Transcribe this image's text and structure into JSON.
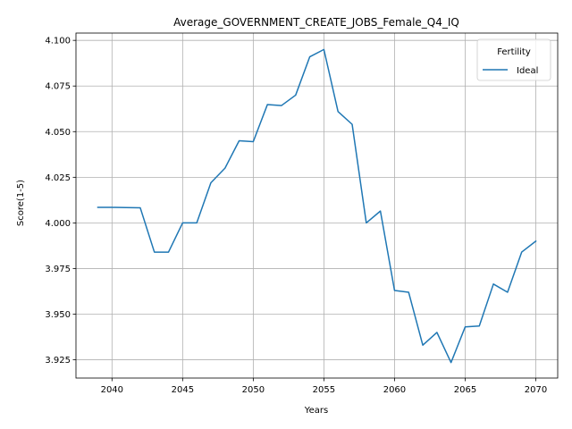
{
  "chart_data": {
    "type": "line",
    "title": "Average_GOVERNMENT_CREATE_JOBS_Female_Q4_IQ",
    "xlabel": "Years",
    "ylabel": "Score(1-5)",
    "xlim": [
      2037.45,
      2071.55
    ],
    "ylim": [
      3.915,
      4.104
    ],
    "xticks": [
      2040,
      2045,
      2050,
      2055,
      2060,
      2065,
      2070
    ],
    "xtick_labels": [
      "2040",
      "2045",
      "2050",
      "2055",
      "2060",
      "2065",
      "2070"
    ],
    "yticks": [
      3.925,
      3.95,
      3.975,
      4.0,
      4.025,
      4.05,
      4.075,
      4.1
    ],
    "ytick_labels": [
      "3.925",
      "3.950",
      "3.975",
      "4.000",
      "4.025",
      "4.050",
      "4.075",
      "4.100"
    ],
    "grid": true,
    "legend": {
      "title": "Fertility",
      "placement": "top-right",
      "entries": [
        "Ideal"
      ]
    },
    "series": [
      {
        "name": "Ideal",
        "color": "#1f77b4",
        "x": [
          2039,
          2040,
          2041,
          2042,
          2043,
          2044,
          2045,
          2046,
          2047,
          2048,
          2049,
          2050,
          2051,
          2052,
          2053,
          2054,
          2055,
          2056,
          2057,
          2058,
          2059,
          2060,
          2061,
          2062,
          2063,
          2064,
          2065,
          2066,
          2067,
          2068,
          2069,
          2070
        ],
        "y": [
          4.0085,
          4.0085,
          4.0084,
          4.0083,
          3.984,
          3.984,
          4.0,
          4.0,
          4.022,
          4.03,
          4.045,
          4.0445,
          4.0648,
          4.0643,
          4.07,
          4.091,
          4.095,
          4.061,
          4.054,
          4.0,
          4.0065,
          3.963,
          3.962,
          3.933,
          3.94,
          3.9235,
          3.943,
          3.9435,
          3.9665,
          3.962,
          3.984,
          3.99
        ]
      }
    ]
  }
}
